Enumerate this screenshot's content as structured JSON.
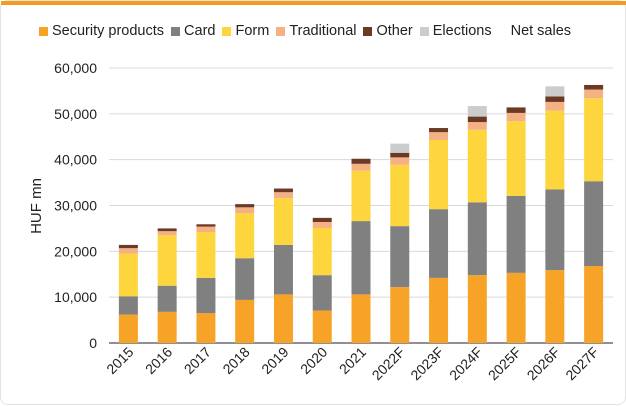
{
  "chart_data": {
    "type": "bar",
    "stacked": true,
    "title": "",
    "xlabel": "",
    "ylabel": "HUF mn",
    "ylim": [
      0,
      60000
    ],
    "yticks": [
      "0",
      "10,000",
      "20,000",
      "30,000",
      "40,000",
      "50,000",
      "60,000"
    ],
    "ytick_values": [
      0,
      10000,
      20000,
      30000,
      40000,
      50000,
      60000
    ],
    "grid": true,
    "legend_position": "top",
    "categories": [
      "2015",
      "2016",
      "2017",
      "2018",
      "2019",
      "2020",
      "2021",
      "2022F",
      "2023F",
      "2024F",
      "2025F",
      "2026F",
      "2027F"
    ],
    "series": [
      {
        "name": "Security products",
        "color": "#f7a328",
        "values": [
          6200,
          6800,
          6500,
          9400,
          10600,
          7100,
          10600,
          12200,
          14200,
          14800,
          15300,
          15900,
          16800
        ]
      },
      {
        "name": "Card",
        "color": "#808080",
        "values": [
          4000,
          5700,
          7700,
          9100,
          10800,
          7700,
          16000,
          13300,
          15000,
          15900,
          16800,
          17600,
          18500
        ]
      },
      {
        "name": "Form",
        "color": "#fdd53d",
        "values": [
          9300,
          11000,
          10000,
          9800,
          10200,
          10300,
          11000,
          13400,
          15100,
          15800,
          16300,
          17200,
          18100
        ]
      },
      {
        "name": "Traditional",
        "color": "#f5b183",
        "values": [
          1200,
          900,
          1200,
          1300,
          1300,
          1300,
          1500,
          1600,
          1700,
          1700,
          1800,
          1900,
          1900
        ]
      },
      {
        "name": "Other",
        "color": "#6b3a24",
        "values": [
          700,
          600,
          500,
          700,
          800,
          900,
          1100,
          1000,
          900,
          1200,
          1200,
          1200,
          1000
        ]
      },
      {
        "name": "Elections",
        "color": "#cccccc",
        "values": [
          0,
          0,
          0,
          0,
          0,
          0,
          0,
          2000,
          0,
          2300,
          0,
          2200,
          0
        ]
      }
    ],
    "net_sales_label": "Net sales"
  },
  "colors": {
    "accent_bar": "#f39c1f",
    "grid": "#d9d9d9",
    "axis": "#222222"
  }
}
